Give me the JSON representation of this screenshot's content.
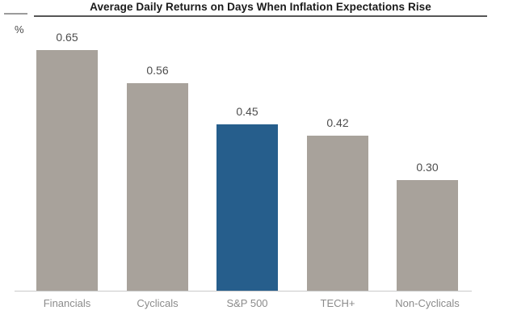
{
  "page": {
    "title": "Average Daily Returns on Days When Inflation Expectations Rise",
    "y_axis_unit": "%"
  },
  "chart_data": {
    "type": "bar",
    "title": "Average Daily Returns on Days When Inflation Expectations Rise",
    "xlabel": "",
    "ylabel": "%",
    "categories": [
      "Financials",
      "Cyclicals",
      "S&P 500",
      "TECH+",
      "Non-Cyclicals"
    ],
    "values": [
      0.65,
      0.56,
      0.45,
      0.42,
      0.3
    ],
    "value_labels": [
      "0.65",
      "0.56",
      "0.45",
      "0.42",
      "0.30"
    ],
    "ylim": [
      0,
      0.7
    ],
    "grid": false,
    "legend": false,
    "highlight_index": 2,
    "colors": {
      "bar": "#a8a29b",
      "highlight": "#265e8c",
      "value_label": "#4d4d4d",
      "category_label": "#8b8b8b",
      "baseline": "#c9c9c9",
      "title_rule": "#565656",
      "corner_rule": "#9b9b9b"
    }
  }
}
